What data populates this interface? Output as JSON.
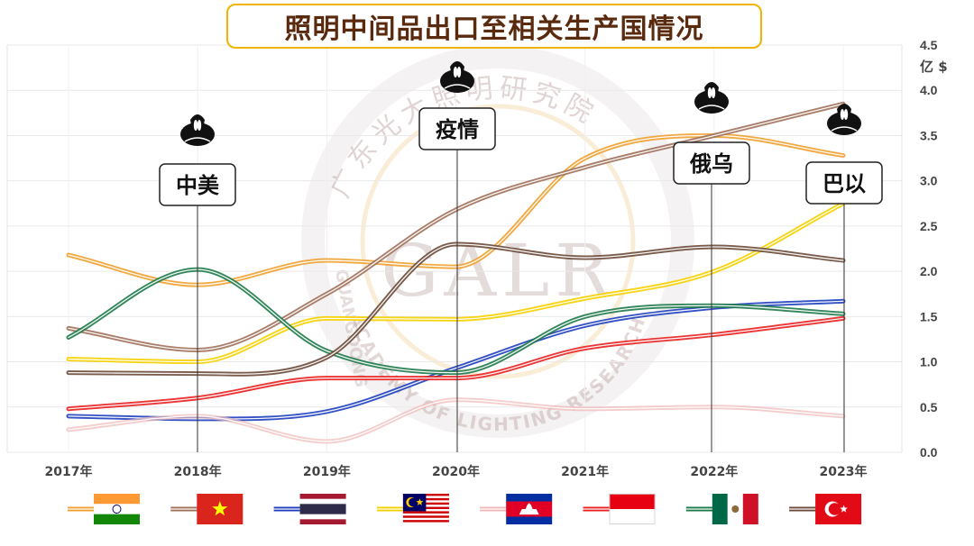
{
  "title": "照明中间品出口至相关生产国情况",
  "watermark": {
    "cn": "广东光大照明研究院",
    "abbr": "GALR",
    "en_top": "GUANGDONG",
    "en_bottom": "ACADEMY OF LIGHTING RESEARCH"
  },
  "events": [
    {
      "label": "中美",
      "year": 2018,
      "icon": "black-swan-icon"
    },
    {
      "label": "疫情",
      "year": 2020,
      "icon": "black-swan-icon"
    },
    {
      "label": "俄乌",
      "year": 2022,
      "icon": "black-swan-icon"
    },
    {
      "label": "巴以",
      "year": 2023,
      "icon": "black-swan-icon"
    }
  ],
  "legend": [
    {
      "series": "India",
      "flag": "india-flag-icon"
    },
    {
      "series": "Vietnam",
      "flag": "vietnam-flag-icon"
    },
    {
      "series": "Thailand",
      "flag": "thailand-flag-icon"
    },
    {
      "series": "Malaysia",
      "flag": "malaysia-flag-icon"
    },
    {
      "series": "Cambodia",
      "flag": "cambodia-flag-icon"
    },
    {
      "series": "Indonesia",
      "flag": "indonesia-flag-icon"
    },
    {
      "series": "Mexico",
      "flag": "mexico-flag-icon"
    },
    {
      "series": "Turkey",
      "flag": "turkey-flag-icon"
    }
  ],
  "chart_data": {
    "type": "line",
    "title": "照明中间品出口至相关生产国情况",
    "categories": [
      "2017年",
      "2018年",
      "2019年",
      "2020年",
      "2021年",
      "2022年",
      "2023年"
    ],
    "x_tick_labels": [
      "2017年",
      "2018年",
      "2019年",
      "2020年",
      "2021年",
      "2022年",
      "2023年"
    ],
    "yunit": "亿 $",
    "ylim": [
      0,
      4.5
    ],
    "y_ticks": [
      0.0,
      0.5,
      1.0,
      1.5,
      2.0,
      2.5,
      3.0,
      3.5,
      4.0,
      4.5
    ],
    "y_tick_labels": [
      "0.0",
      "0.5",
      "1.0",
      "1.5",
      "2.0",
      "2.5",
      "3.0",
      "3.5",
      "4.0",
      "4.5"
    ],
    "y_axis_side": "right",
    "grid": true,
    "legend_position": "bottom",
    "series": [
      {
        "key": "india",
        "color": "#f0a030",
        "values": [
          2.18,
          1.85,
          2.12,
          2.05,
          3.25,
          3.5,
          3.28
        ]
      },
      {
        "key": "vietnam",
        "color": "#a0705a",
        "values": [
          1.37,
          1.13,
          1.75,
          2.68,
          3.15,
          3.5,
          3.85
        ]
      },
      {
        "key": "thailand",
        "color": "#1f3fbf",
        "values": [
          0.4,
          0.37,
          0.45,
          0.93,
          1.4,
          1.6,
          1.67
        ]
      },
      {
        "key": "malaysia",
        "color": "#f5d000",
        "values": [
          1.03,
          1.0,
          1.48,
          1.47,
          1.7,
          2.0,
          2.75
        ]
      },
      {
        "key": "cambodia",
        "color": "#f0b8b8",
        "values": [
          0.25,
          0.4,
          0.12,
          0.58,
          0.48,
          0.5,
          0.4
        ]
      },
      {
        "key": "indonesia",
        "color": "#e82020",
        "values": [
          0.48,
          0.6,
          0.82,
          0.82,
          1.15,
          1.3,
          1.48
        ]
      },
      {
        "key": "mexico",
        "color": "#1e7a4a",
        "values": [
          1.27,
          2.02,
          1.12,
          0.88,
          1.5,
          1.62,
          1.53
        ]
      },
      {
        "key": "turkey",
        "color": "#6b4a3a",
        "values": [
          0.88,
          0.87,
          1.05,
          2.3,
          2.15,
          2.27,
          2.12
        ]
      }
    ]
  }
}
